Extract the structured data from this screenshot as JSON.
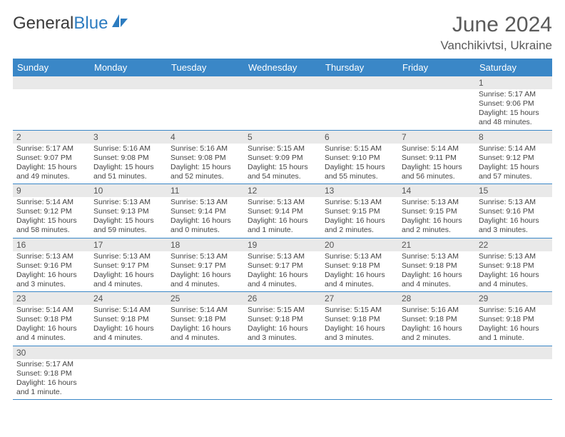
{
  "logo": {
    "text1": "General",
    "text2": "Blue"
  },
  "title": "June 2024",
  "location": "Vanchikivtsi, Ukraine",
  "colors": {
    "header_bg": "#3a87c7",
    "header_text": "#ffffff",
    "daynum_bg": "#e9e9e9",
    "border": "#3a87c7",
    "title_color": "#5a5a5a"
  },
  "fonts": {
    "title_size": 30,
    "location_size": 17,
    "dow_size": 13,
    "daynum_size": 12,
    "body_size": 10.5
  },
  "dow": [
    "Sunday",
    "Monday",
    "Tuesday",
    "Wednesday",
    "Thursday",
    "Friday",
    "Saturday"
  ],
  "weeks": [
    [
      null,
      null,
      null,
      null,
      null,
      null,
      {
        "n": "1",
        "sr": "Sunrise: 5:17 AM",
        "ss": "Sunset: 9:06 PM",
        "d1": "Daylight: 15 hours",
        "d2": "and 48 minutes."
      }
    ],
    [
      {
        "n": "2",
        "sr": "Sunrise: 5:17 AM",
        "ss": "Sunset: 9:07 PM",
        "d1": "Daylight: 15 hours",
        "d2": "and 49 minutes."
      },
      {
        "n": "3",
        "sr": "Sunrise: 5:16 AM",
        "ss": "Sunset: 9:08 PM",
        "d1": "Daylight: 15 hours",
        "d2": "and 51 minutes."
      },
      {
        "n": "4",
        "sr": "Sunrise: 5:16 AM",
        "ss": "Sunset: 9:08 PM",
        "d1": "Daylight: 15 hours",
        "d2": "and 52 minutes."
      },
      {
        "n": "5",
        "sr": "Sunrise: 5:15 AM",
        "ss": "Sunset: 9:09 PM",
        "d1": "Daylight: 15 hours",
        "d2": "and 54 minutes."
      },
      {
        "n": "6",
        "sr": "Sunrise: 5:15 AM",
        "ss": "Sunset: 9:10 PM",
        "d1": "Daylight: 15 hours",
        "d2": "and 55 minutes."
      },
      {
        "n": "7",
        "sr": "Sunrise: 5:14 AM",
        "ss": "Sunset: 9:11 PM",
        "d1": "Daylight: 15 hours",
        "d2": "and 56 minutes."
      },
      {
        "n": "8",
        "sr": "Sunrise: 5:14 AM",
        "ss": "Sunset: 9:12 PM",
        "d1": "Daylight: 15 hours",
        "d2": "and 57 minutes."
      }
    ],
    [
      {
        "n": "9",
        "sr": "Sunrise: 5:14 AM",
        "ss": "Sunset: 9:12 PM",
        "d1": "Daylight: 15 hours",
        "d2": "and 58 minutes."
      },
      {
        "n": "10",
        "sr": "Sunrise: 5:13 AM",
        "ss": "Sunset: 9:13 PM",
        "d1": "Daylight: 15 hours",
        "d2": "and 59 minutes."
      },
      {
        "n": "11",
        "sr": "Sunrise: 5:13 AM",
        "ss": "Sunset: 9:14 PM",
        "d1": "Daylight: 16 hours",
        "d2": "and 0 minutes."
      },
      {
        "n": "12",
        "sr": "Sunrise: 5:13 AM",
        "ss": "Sunset: 9:14 PM",
        "d1": "Daylight: 16 hours",
        "d2": "and 1 minute."
      },
      {
        "n": "13",
        "sr": "Sunrise: 5:13 AM",
        "ss": "Sunset: 9:15 PM",
        "d1": "Daylight: 16 hours",
        "d2": "and 2 minutes."
      },
      {
        "n": "14",
        "sr": "Sunrise: 5:13 AM",
        "ss": "Sunset: 9:15 PM",
        "d1": "Daylight: 16 hours",
        "d2": "and 2 minutes."
      },
      {
        "n": "15",
        "sr": "Sunrise: 5:13 AM",
        "ss": "Sunset: 9:16 PM",
        "d1": "Daylight: 16 hours",
        "d2": "and 3 minutes."
      }
    ],
    [
      {
        "n": "16",
        "sr": "Sunrise: 5:13 AM",
        "ss": "Sunset: 9:16 PM",
        "d1": "Daylight: 16 hours",
        "d2": "and 3 minutes."
      },
      {
        "n": "17",
        "sr": "Sunrise: 5:13 AM",
        "ss": "Sunset: 9:17 PM",
        "d1": "Daylight: 16 hours",
        "d2": "and 4 minutes."
      },
      {
        "n": "18",
        "sr": "Sunrise: 5:13 AM",
        "ss": "Sunset: 9:17 PM",
        "d1": "Daylight: 16 hours",
        "d2": "and 4 minutes."
      },
      {
        "n": "19",
        "sr": "Sunrise: 5:13 AM",
        "ss": "Sunset: 9:17 PM",
        "d1": "Daylight: 16 hours",
        "d2": "and 4 minutes."
      },
      {
        "n": "20",
        "sr": "Sunrise: 5:13 AM",
        "ss": "Sunset: 9:18 PM",
        "d1": "Daylight: 16 hours",
        "d2": "and 4 minutes."
      },
      {
        "n": "21",
        "sr": "Sunrise: 5:13 AM",
        "ss": "Sunset: 9:18 PM",
        "d1": "Daylight: 16 hours",
        "d2": "and 4 minutes."
      },
      {
        "n": "22",
        "sr": "Sunrise: 5:13 AM",
        "ss": "Sunset: 9:18 PM",
        "d1": "Daylight: 16 hours",
        "d2": "and 4 minutes."
      }
    ],
    [
      {
        "n": "23",
        "sr": "Sunrise: 5:14 AM",
        "ss": "Sunset: 9:18 PM",
        "d1": "Daylight: 16 hours",
        "d2": "and 4 minutes."
      },
      {
        "n": "24",
        "sr": "Sunrise: 5:14 AM",
        "ss": "Sunset: 9:18 PM",
        "d1": "Daylight: 16 hours",
        "d2": "and 4 minutes."
      },
      {
        "n": "25",
        "sr": "Sunrise: 5:14 AM",
        "ss": "Sunset: 9:18 PM",
        "d1": "Daylight: 16 hours",
        "d2": "and 4 minutes."
      },
      {
        "n": "26",
        "sr": "Sunrise: 5:15 AM",
        "ss": "Sunset: 9:18 PM",
        "d1": "Daylight: 16 hours",
        "d2": "and 3 minutes."
      },
      {
        "n": "27",
        "sr": "Sunrise: 5:15 AM",
        "ss": "Sunset: 9:18 PM",
        "d1": "Daylight: 16 hours",
        "d2": "and 3 minutes."
      },
      {
        "n": "28",
        "sr": "Sunrise: 5:16 AM",
        "ss": "Sunset: 9:18 PM",
        "d1": "Daylight: 16 hours",
        "d2": "and 2 minutes."
      },
      {
        "n": "29",
        "sr": "Sunrise: 5:16 AM",
        "ss": "Sunset: 9:18 PM",
        "d1": "Daylight: 16 hours",
        "d2": "and 1 minute."
      }
    ],
    [
      {
        "n": "30",
        "sr": "Sunrise: 5:17 AM",
        "ss": "Sunset: 9:18 PM",
        "d1": "Daylight: 16 hours",
        "d2": "and 1 minute."
      },
      null,
      null,
      null,
      null,
      null,
      null
    ]
  ]
}
